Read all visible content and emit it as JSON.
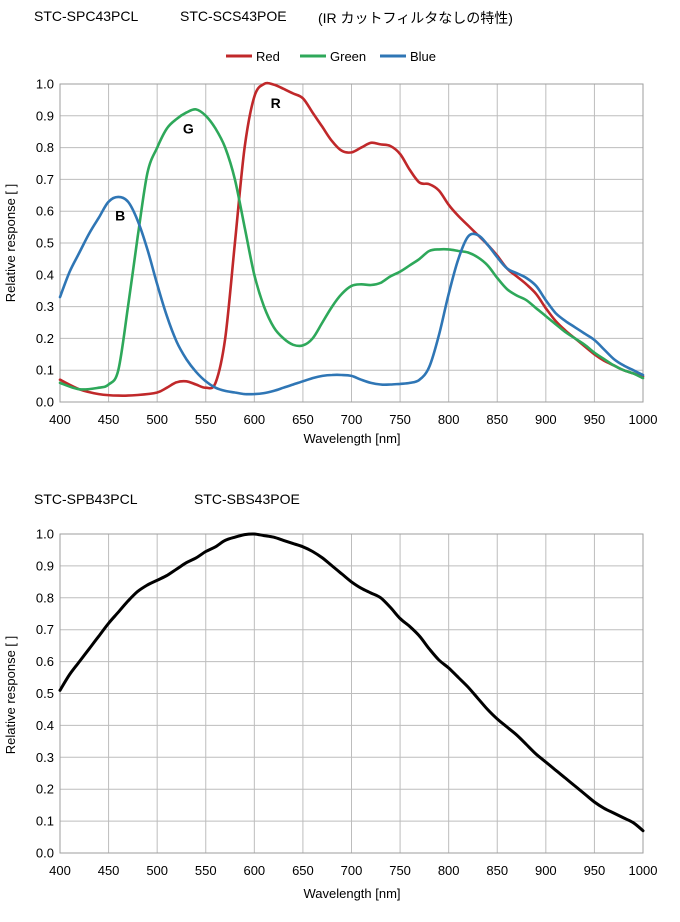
{
  "header1": {
    "model_a": "STC-SPC43PCL",
    "model_b": "STC-SCS43POE",
    "note": "(IR カットフィルタなしの特性)"
  },
  "header2": {
    "model_a": "STC-SPB43PCL",
    "model_b": "STC-SBS43POE"
  },
  "chart_data": [
    {
      "type": "line",
      "title": "",
      "xlabel": "Wavelength [nm]",
      "ylabel": "Relative response [ ]",
      "xlim": [
        400,
        1000
      ],
      "ylim": [
        0,
        1.0
      ],
      "xticks": [
        400,
        450,
        500,
        550,
        600,
        650,
        700,
        750,
        800,
        850,
        900,
        950,
        1000
      ],
      "yticks": [
        "0.0",
        "0.1",
        "0.2",
        "0.3",
        "0.4",
        "0.5",
        "0.6",
        "0.7",
        "0.8",
        "0.9",
        "1.0"
      ],
      "grid": true,
      "legend_position": "top-center",
      "annotations": [
        {
          "text": "R",
          "x": 622,
          "y": 0.925
        },
        {
          "text": "G",
          "x": 532,
          "y": 0.845
        },
        {
          "text": "B",
          "x": 462,
          "y": 0.57
        }
      ],
      "series": [
        {
          "name": "Red",
          "color": "#c0282a",
          "x": [
            400,
            420,
            440,
            460,
            480,
            500,
            510,
            520,
            530,
            540,
            550,
            560,
            570,
            580,
            590,
            600,
            610,
            620,
            630,
            640,
            650,
            660,
            670,
            680,
            690,
            700,
            710,
            720,
            730,
            740,
            750,
            760,
            770,
            780,
            790,
            800,
            810,
            820,
            830,
            840,
            850,
            860,
            870,
            880,
            890,
            900,
            910,
            920,
            930,
            940,
            950,
            960,
            970,
            980,
            990,
            1000
          ],
          "y": [
            0.07,
            0.04,
            0.025,
            0.02,
            0.022,
            0.03,
            0.045,
            0.062,
            0.065,
            0.055,
            0.045,
            0.06,
            0.2,
            0.5,
            0.8,
            0.96,
            1.0,
            0.998,
            0.985,
            0.97,
            0.955,
            0.91,
            0.865,
            0.82,
            0.79,
            0.785,
            0.8,
            0.815,
            0.81,
            0.805,
            0.78,
            0.73,
            0.69,
            0.685,
            0.665,
            0.62,
            0.585,
            0.555,
            0.525,
            0.495,
            0.46,
            0.42,
            0.395,
            0.37,
            0.34,
            0.295,
            0.255,
            0.225,
            0.2,
            0.175,
            0.15,
            0.13,
            0.115,
            0.1,
            0.09,
            0.08
          ]
        },
        {
          "name": "Green",
          "color": "#2ea85a",
          "x": [
            400,
            420,
            440,
            450,
            460,
            470,
            480,
            490,
            500,
            510,
            520,
            530,
            540,
            550,
            560,
            570,
            580,
            590,
            600,
            610,
            620,
            630,
            640,
            650,
            660,
            670,
            680,
            690,
            700,
            710,
            720,
            730,
            740,
            750,
            760,
            770,
            780,
            790,
            800,
            810,
            820,
            830,
            840,
            850,
            860,
            870,
            880,
            890,
            900,
            910,
            920,
            930,
            940,
            950,
            960,
            970,
            980,
            990,
            1000
          ],
          "y": [
            0.06,
            0.04,
            0.045,
            0.055,
            0.1,
            0.3,
            0.52,
            0.72,
            0.8,
            0.86,
            0.89,
            0.91,
            0.92,
            0.9,
            0.86,
            0.8,
            0.7,
            0.55,
            0.4,
            0.3,
            0.235,
            0.2,
            0.18,
            0.178,
            0.2,
            0.25,
            0.3,
            0.34,
            0.365,
            0.37,
            0.368,
            0.375,
            0.395,
            0.41,
            0.43,
            0.45,
            0.475,
            0.48,
            0.48,
            0.475,
            0.47,
            0.455,
            0.43,
            0.39,
            0.355,
            0.335,
            0.32,
            0.295,
            0.27,
            0.245,
            0.22,
            0.2,
            0.18,
            0.155,
            0.135,
            0.115,
            0.1,
            0.09,
            0.075
          ]
        },
        {
          "name": "Blue",
          "color": "#2f76b5",
          "x": [
            400,
            410,
            420,
            430,
            440,
            450,
            460,
            470,
            480,
            490,
            500,
            510,
            520,
            530,
            540,
            550,
            560,
            570,
            580,
            590,
            600,
            610,
            620,
            630,
            640,
            650,
            660,
            670,
            680,
            690,
            700,
            710,
            720,
            730,
            740,
            750,
            760,
            770,
            780,
            790,
            800,
            810,
            820,
            830,
            840,
            850,
            860,
            870,
            880,
            890,
            900,
            910,
            920,
            930,
            940,
            950,
            960,
            970,
            980,
            990,
            1000
          ],
          "y": [
            0.33,
            0.41,
            0.47,
            0.53,
            0.58,
            0.63,
            0.645,
            0.63,
            0.57,
            0.48,
            0.37,
            0.27,
            0.19,
            0.135,
            0.095,
            0.065,
            0.045,
            0.035,
            0.03,
            0.025,
            0.025,
            0.028,
            0.035,
            0.045,
            0.055,
            0.065,
            0.075,
            0.082,
            0.085,
            0.085,
            0.082,
            0.07,
            0.06,
            0.055,
            0.055,
            0.057,
            0.06,
            0.07,
            0.11,
            0.21,
            0.34,
            0.45,
            0.52,
            0.525,
            0.495,
            0.455,
            0.42,
            0.405,
            0.39,
            0.365,
            0.32,
            0.28,
            0.255,
            0.235,
            0.215,
            0.195,
            0.165,
            0.135,
            0.115,
            0.1,
            0.085
          ]
        }
      ]
    },
    {
      "type": "line",
      "title": "",
      "xlabel": "Wavelength [nm]",
      "ylabel": "Relative response [ ]",
      "xlim": [
        400,
        1000
      ],
      "ylim": [
        0,
        1.0
      ],
      "xticks": [
        400,
        450,
        500,
        550,
        600,
        650,
        700,
        750,
        800,
        850,
        900,
        950,
        1000
      ],
      "yticks": [
        "0.0",
        "0.1",
        "0.2",
        "0.3",
        "0.4",
        "0.5",
        "0.6",
        "0.7",
        "0.8",
        "0.9",
        "1.0"
      ],
      "grid": true,
      "series": [
        {
          "color": "#000000",
          "x": [
            400,
            410,
            420,
            430,
            440,
            450,
            460,
            470,
            480,
            490,
            500,
            510,
            520,
            530,
            540,
            550,
            560,
            570,
            580,
            590,
            600,
            610,
            620,
            630,
            640,
            650,
            660,
            670,
            680,
            690,
            700,
            710,
            720,
            730,
            740,
            750,
            760,
            770,
            780,
            790,
            800,
            810,
            820,
            830,
            840,
            850,
            860,
            870,
            880,
            890,
            900,
            910,
            920,
            930,
            940,
            950,
            960,
            970,
            980,
            990,
            1000
          ],
          "y": [
            0.51,
            0.56,
            0.6,
            0.64,
            0.68,
            0.72,
            0.755,
            0.79,
            0.82,
            0.84,
            0.855,
            0.87,
            0.89,
            0.91,
            0.925,
            0.945,
            0.96,
            0.98,
            0.99,
            0.998,
            1.0,
            0.995,
            0.99,
            0.98,
            0.97,
            0.96,
            0.945,
            0.925,
            0.9,
            0.875,
            0.85,
            0.83,
            0.815,
            0.8,
            0.77,
            0.735,
            0.71,
            0.68,
            0.64,
            0.605,
            0.58,
            0.55,
            0.52,
            0.485,
            0.45,
            0.42,
            0.395,
            0.37,
            0.34,
            0.31,
            0.285,
            0.26,
            0.235,
            0.21,
            0.185,
            0.16,
            0.14,
            0.125,
            0.11,
            0.095,
            0.07
          ]
        }
      ]
    }
  ]
}
